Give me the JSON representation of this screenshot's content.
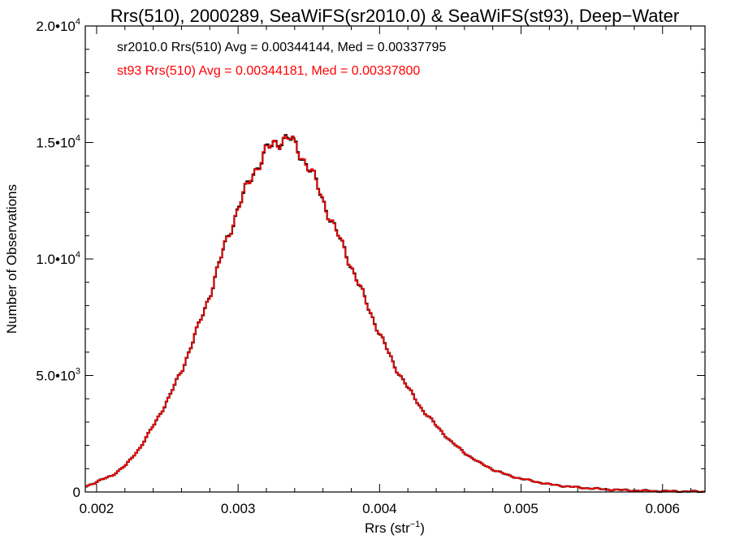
{
  "chart_data": {
    "type": "histogram",
    "title": "Rrs(510), 2000289, SeaWiFS(sr2010.0) & SeaWiFS(st93), Deep−Water",
    "xlabel": "Rrs (str",
    "xlabel_sup": "−1",
    "xlabel_suffix": ")",
    "ylabel": "Number of Observations",
    "xlim": [
      0.00192,
      0.0063
    ],
    "ylim": [
      0,
      20000
    ],
    "x_ticks": [
      {
        "value": 0.002,
        "label": "0.002"
      },
      {
        "value": 0.003,
        "label": "0.003"
      },
      {
        "value": 0.004,
        "label": "0.004"
      },
      {
        "value": 0.005,
        "label": "0.005"
      },
      {
        "value": 0.006,
        "label": "0.006"
      }
    ],
    "y_ticks": [
      {
        "value": 0,
        "base": "0",
        "exp": ""
      },
      {
        "value": 5000,
        "base": "5.0•10",
        "exp": "3"
      },
      {
        "value": 10000,
        "base": "1.0•10",
        "exp": "4"
      },
      {
        "value": 15000,
        "base": "1.5•10",
        "exp": "4"
      },
      {
        "value": 20000,
        "base": "2.0•10",
        "exp": "4"
      }
    ],
    "annotations": [
      {
        "text": "sr2010.0 Rrs(510) Avg = 0.00344144, Med = 0.00337795",
        "color": "#000000"
      },
      {
        "text": "st93 Rrs(510) Avg = 0.00344181, Med = 0.00337800",
        "color": "#ff0000"
      }
    ],
    "series": [
      {
        "name": "sr2010.0",
        "color": "#000000",
        "points": [
          [
            0.00192,
            250
          ],
          [
            0.0021,
            700
          ],
          [
            0.0022,
            1150
          ],
          [
            0.0023,
            1900
          ],
          [
            0.0024,
            2900
          ],
          [
            0.0025,
            4000
          ],
          [
            0.0026,
            5300
          ],
          [
            0.0027,
            6900
          ],
          [
            0.0028,
            8600
          ],
          [
            0.0029,
            10600
          ],
          [
            0.003,
            12300
          ],
          [
            0.0031,
            13700
          ],
          [
            0.0032,
            14700
          ],
          [
            0.0033,
            15150
          ],
          [
            0.00335,
            15200
          ],
          [
            0.0034,
            14800
          ],
          [
            0.0035,
            13900
          ],
          [
            0.0036,
            12400
          ],
          [
            0.0037,
            11000
          ],
          [
            0.0038,
            9600
          ],
          [
            0.0039,
            8100
          ],
          [
            0.004,
            6700
          ],
          [
            0.0041,
            5400
          ],
          [
            0.0042,
            4400
          ],
          [
            0.0043,
            3500
          ],
          [
            0.0044,
            2800
          ],
          [
            0.0045,
            2150
          ],
          [
            0.0046,
            1650
          ],
          [
            0.0047,
            1250
          ],
          [
            0.0048,
            950
          ],
          [
            0.0049,
            720
          ],
          [
            0.005,
            560
          ],
          [
            0.0052,
            320
          ],
          [
            0.0054,
            190
          ],
          [
            0.0056,
            110
          ],
          [
            0.0058,
            60
          ],
          [
            0.006,
            35
          ],
          [
            0.0063,
            15
          ]
        ]
      },
      {
        "name": "st93",
        "color": "#ff0000",
        "points": [
          [
            0.00192,
            250
          ],
          [
            0.0021,
            700
          ],
          [
            0.0022,
            1150
          ],
          [
            0.0023,
            1900
          ],
          [
            0.0024,
            2900
          ],
          [
            0.0025,
            4000
          ],
          [
            0.0026,
            5300
          ],
          [
            0.0027,
            6900
          ],
          [
            0.0028,
            8600
          ],
          [
            0.0029,
            10600
          ],
          [
            0.003,
            12300
          ],
          [
            0.0031,
            13700
          ],
          [
            0.0032,
            14700
          ],
          [
            0.0033,
            15150
          ],
          [
            0.00335,
            15200
          ],
          [
            0.0034,
            14800
          ],
          [
            0.0035,
            13900
          ],
          [
            0.0036,
            12400
          ],
          [
            0.0037,
            11000
          ],
          [
            0.0038,
            9600
          ],
          [
            0.0039,
            8100
          ],
          [
            0.004,
            6700
          ],
          [
            0.0041,
            5400
          ],
          [
            0.0042,
            4400
          ],
          [
            0.0043,
            3500
          ],
          [
            0.0044,
            2800
          ],
          [
            0.0045,
            2150
          ],
          [
            0.0046,
            1650
          ],
          [
            0.0047,
            1250
          ],
          [
            0.0048,
            950
          ],
          [
            0.0049,
            720
          ],
          [
            0.005,
            560
          ],
          [
            0.0052,
            320
          ],
          [
            0.0054,
            190
          ],
          [
            0.0056,
            110
          ],
          [
            0.0058,
            60
          ],
          [
            0.006,
            35
          ],
          [
            0.0063,
            15
          ]
        ]
      }
    ],
    "grid": false,
    "legend": "none"
  }
}
